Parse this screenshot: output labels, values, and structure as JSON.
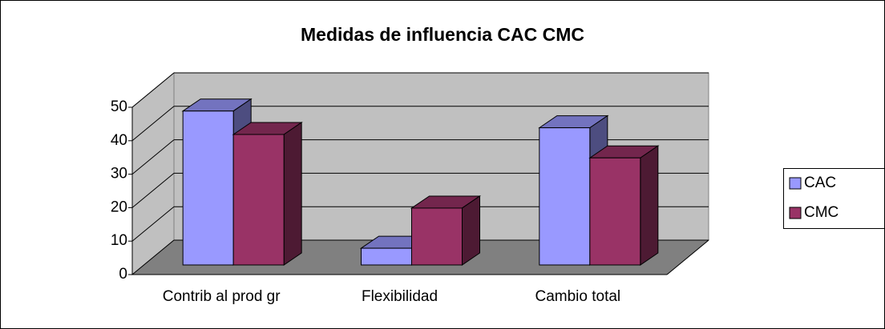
{
  "chart_data": {
    "type": "bar3d",
    "title": "Medidas de influencia CAC  CMC",
    "categories": [
      "Contrib al prod gr",
      "Flexibilidad",
      "Cambio total"
    ],
    "series": [
      {
        "name": "CAC",
        "color": "#9999ff",
        "values": [
          46,
          5,
          41
        ]
      },
      {
        "name": "CMC",
        "color": "#993366",
        "values": [
          39,
          17,
          32
        ]
      }
    ],
    "ylim": [
      0,
      50
    ],
    "yticks": [
      0,
      10,
      20,
      30,
      40,
      50
    ],
    "grid": true,
    "legend": "right"
  }
}
